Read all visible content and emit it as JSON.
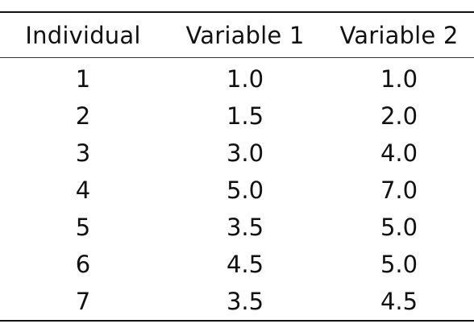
{
  "table": {
    "headers": [
      "Individual",
      "Variable 1",
      "Variable 2"
    ],
    "rows": [
      [
        "1",
        "1.0",
        "1.0"
      ],
      [
        "2",
        "1.5",
        "2.0"
      ],
      [
        "3",
        "3.0",
        "4.0"
      ],
      [
        "4",
        "5.0",
        "7.0"
      ],
      [
        "5",
        "3.5",
        "5.0"
      ],
      [
        "6",
        "4.5",
        "5.0"
      ],
      [
        "7",
        "3.5",
        "4.5"
      ]
    ]
  }
}
